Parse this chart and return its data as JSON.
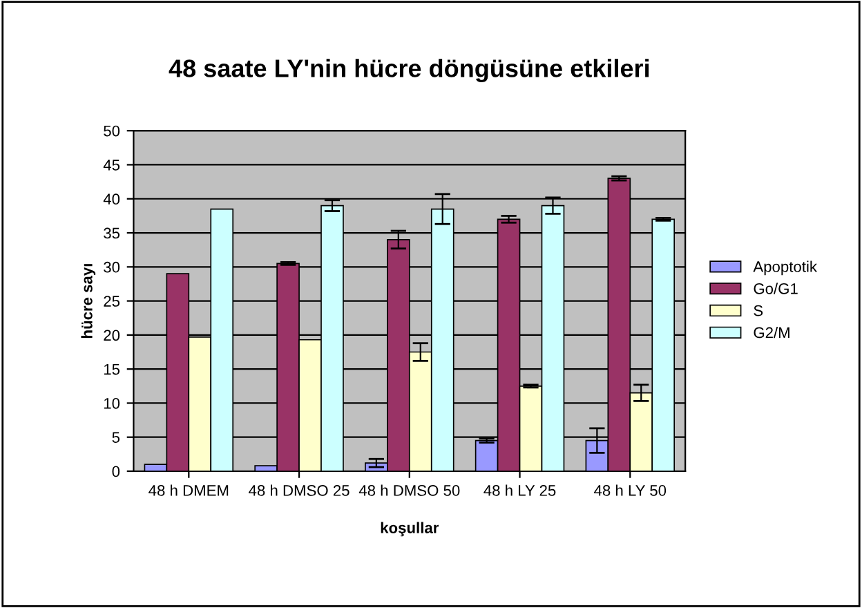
{
  "chart_data": {
    "type": "bar",
    "title": "48 saate LY'nin hücre döngüsüne etkileri",
    "xlabel": "koşullar",
    "ylabel": "hücre sayı",
    "categories": [
      "48 h DMEM",
      "48 h DMSO 25",
      "48 h DMSO 50",
      "48 h LY 25",
      "48 h LY 50"
    ],
    "series": [
      {
        "name": "Apoptotik",
        "color": "#9999ff",
        "values": [
          1,
          0.8,
          1.2,
          4.5,
          4.5
        ],
        "errors": [
          null,
          null,
          0.6,
          0.3,
          1.8
        ]
      },
      {
        "name": "Go/G1",
        "color": "#993366",
        "values": [
          29,
          30.5,
          34,
          37,
          43
        ],
        "errors": [
          null,
          0.2,
          1.3,
          0.5,
          0.3
        ]
      },
      {
        "name": "S",
        "color": "#ffffcc",
        "values": [
          19.7,
          19.3,
          17.5,
          12.5,
          11.5
        ],
        "errors": [
          null,
          null,
          1.3,
          0.2,
          1.2
        ]
      },
      {
        "name": "G2/M",
        "color": "#ccffff",
        "values": [
          38.5,
          39,
          38.5,
          39,
          37
        ],
        "errors": [
          null,
          0.8,
          2.2,
          1.2,
          0.2
        ]
      }
    ],
    "ylim": [
      0,
      50
    ],
    "yticks": [
      0,
      5,
      10,
      15,
      20,
      25,
      30,
      35,
      40,
      45,
      50
    ],
    "grid": "y",
    "legend": "right"
  }
}
